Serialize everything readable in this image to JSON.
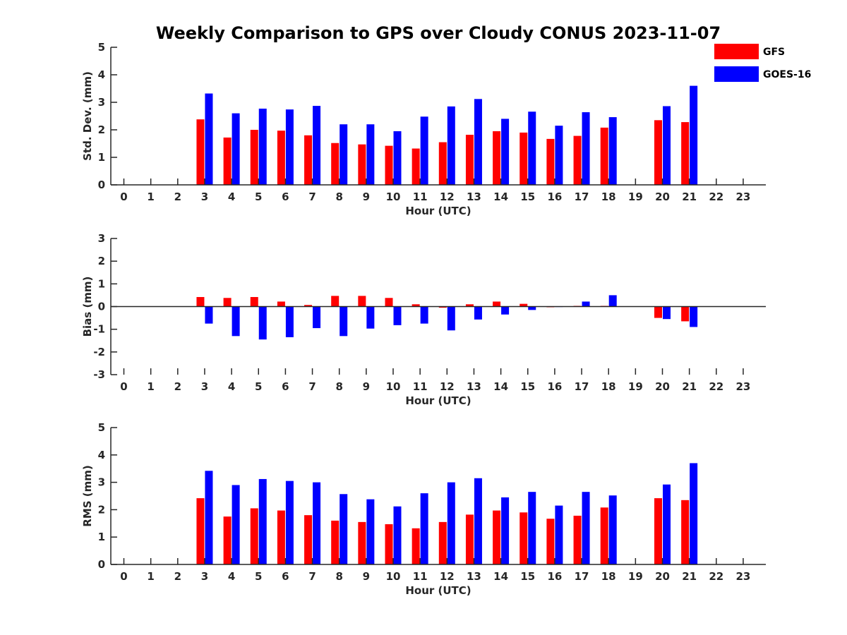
{
  "title": "Weekly Comparison to GPS over Cloudy CONUS 2023-11-07",
  "legend": {
    "placement": "top-right",
    "entries": [
      {
        "name": "GFS",
        "color": "#ff0000"
      },
      {
        "name": "GOES-16",
        "color": "#0000ff"
      }
    ]
  },
  "chart_data": [
    {
      "type": "bar",
      "xlabel": "Hour (UTC)",
      "ylabel": "Std. Dev. (mm)",
      "ylim": [
        0,
        5
      ],
      "yticks": [
        0,
        1,
        2,
        3,
        4,
        5
      ],
      "categories": [
        "0",
        "1",
        "2",
        "3",
        "4",
        "5",
        "6",
        "7",
        "8",
        "9",
        "10",
        "11",
        "12",
        "13",
        "14",
        "15",
        "16",
        "17",
        "18",
        "19",
        "20",
        "21",
        "22",
        "23"
      ],
      "series": [
        {
          "name": "GFS",
          "color": "#ff0000",
          "values": [
            null,
            null,
            null,
            2.38,
            1.72,
            2.0,
            1.97,
            1.8,
            1.52,
            1.47,
            1.42,
            1.32,
            1.55,
            1.82,
            1.95,
            1.9,
            1.67,
            1.78,
            2.08,
            null,
            2.35,
            2.28,
            null,
            null
          ]
        },
        {
          "name": "GOES-16",
          "color": "#0000ff",
          "values": [
            null,
            null,
            null,
            3.32,
            2.6,
            2.77,
            2.74,
            2.87,
            2.2,
            2.2,
            1.95,
            2.48,
            2.85,
            3.12,
            2.4,
            2.66,
            2.15,
            2.64,
            2.46,
            null,
            2.86,
            3.6,
            null,
            null
          ]
        }
      ]
    },
    {
      "type": "bar",
      "xlabel": "Hour (UTC)",
      "ylabel": "Bias (mm)",
      "ylim": [
        -3,
        3
      ],
      "yticks": [
        -3,
        -2,
        -1,
        0,
        1,
        2,
        3
      ],
      "categories": [
        "0",
        "1",
        "2",
        "3",
        "4",
        "5",
        "6",
        "7",
        "8",
        "9",
        "10",
        "11",
        "12",
        "13",
        "14",
        "15",
        "16",
        "17",
        "18",
        "19",
        "20",
        "21",
        "22",
        "23"
      ],
      "series": [
        {
          "name": "GFS",
          "color": "#ff0000",
          "values": [
            null,
            null,
            null,
            0.42,
            0.38,
            0.42,
            0.22,
            0.07,
            0.47,
            0.47,
            0.38,
            0.1,
            -0.05,
            0.1,
            0.22,
            0.12,
            -0.03,
            0.03,
            0.03,
            null,
            -0.5,
            -0.65,
            null,
            null
          ]
        },
        {
          "name": "GOES-16",
          "color": "#0000ff",
          "values": [
            null,
            null,
            null,
            -0.75,
            -1.3,
            -1.45,
            -1.35,
            -0.95,
            -1.3,
            -0.97,
            -0.82,
            -0.75,
            -1.05,
            -0.57,
            -0.35,
            -0.15,
            -0.02,
            0.22,
            0.5,
            null,
            -0.55,
            -0.9,
            null,
            null
          ]
        }
      ]
    },
    {
      "type": "bar",
      "xlabel": "Hour (UTC)",
      "ylabel": "RMS (mm)",
      "ylim": [
        0,
        5
      ],
      "yticks": [
        0,
        1,
        2,
        3,
        4,
        5
      ],
      "categories": [
        "0",
        "1",
        "2",
        "3",
        "4",
        "5",
        "6",
        "7",
        "8",
        "9",
        "10",
        "11",
        "12",
        "13",
        "14",
        "15",
        "16",
        "17",
        "18",
        "19",
        "20",
        "21",
        "22",
        "23"
      ],
      "series": [
        {
          "name": "GFS",
          "color": "#ff0000",
          "values": [
            null,
            null,
            null,
            2.42,
            1.75,
            2.05,
            1.97,
            1.8,
            1.6,
            1.55,
            1.47,
            1.32,
            1.55,
            1.82,
            1.97,
            1.9,
            1.67,
            1.78,
            2.08,
            null,
            2.42,
            2.35,
            null,
            null
          ]
        },
        {
          "name": "GOES-16",
          "color": "#0000ff",
          "values": [
            null,
            null,
            null,
            3.42,
            2.9,
            3.12,
            3.05,
            3.0,
            2.57,
            2.38,
            2.12,
            2.6,
            3.0,
            3.15,
            2.45,
            2.65,
            2.15,
            2.65,
            2.52,
            null,
            2.92,
            3.7,
            null,
            null
          ]
        }
      ]
    }
  ]
}
